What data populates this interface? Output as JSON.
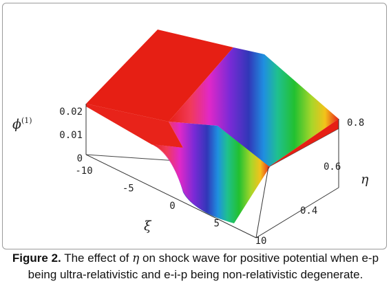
{
  "chart_data": {
    "type": "surface3d",
    "x_axis": {
      "symbol": "ξ",
      "ticks": [
        "-10",
        "-5",
        "0",
        "5",
        "10"
      ],
      "range": [
        -10,
        10
      ]
    },
    "y_axis": {
      "symbol": "η",
      "ticks": [
        "0.4",
        "0.6",
        "0.8"
      ],
      "range": [
        0.3,
        0.85
      ]
    },
    "z_axis": {
      "symbol": "ϕ(1)",
      "ticks": [
        "0",
        "0.01",
        "0.02"
      ],
      "range": [
        0,
        0.02
      ]
    },
    "surface": {
      "profile": "tanh shock: ϕ(1) ≈ 0.02 for ξ < 0, ϕ(1) ≈ 0 for ξ > 0",
      "coloring": "rainbow by ξ"
    }
  },
  "labels": {
    "z_symbol": "ϕ",
    "z_sup": "(1)",
    "x_symbol": "ξ",
    "y_symbol": "η"
  },
  "caption": {
    "label": "Figure 2.",
    "text_before": " The effect of ",
    "symbol": "η",
    "text_after": "  on shock wave for positive potential when e-p being ultra-relativistic and e-i-p being non-relativistic degenerate."
  }
}
